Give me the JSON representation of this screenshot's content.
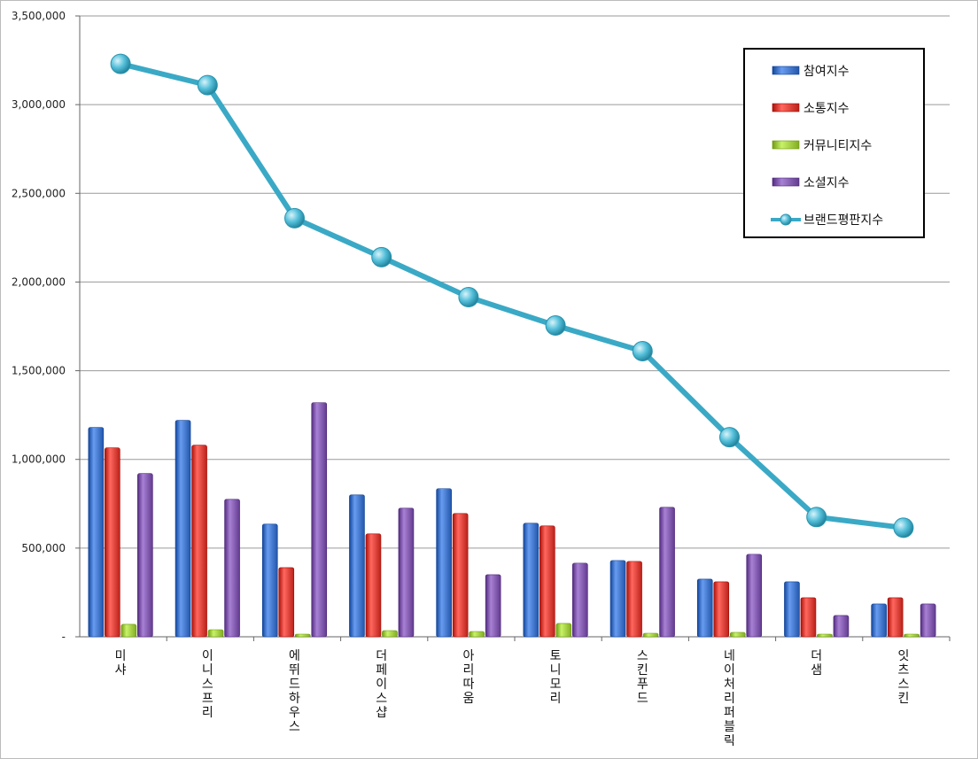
{
  "chart_data": {
    "type": "bar",
    "categories": [
      "미샤",
      "이니스프리",
      "에뛰드하우스",
      "더페이스샵",
      "아리따움",
      "토니모리",
      "스킨푸드",
      "네이처리퍼블릭",
      "더샘",
      "잇츠스킨"
    ],
    "series": [
      {
        "name": "참여지수",
        "type": "bar",
        "color": "#3B6FC4",
        "values": [
          1180000,
          1220000,
          635000,
          800000,
          835000,
          640000,
          430000,
          325000,
          310000,
          185000
        ]
      },
      {
        "name": "소통지수",
        "type": "bar",
        "color": "#D33A32",
        "values": [
          1065000,
          1080000,
          390000,
          580000,
          695000,
          625000,
          425000,
          310000,
          220000,
          220000
        ]
      },
      {
        "name": "커뮤니티지수",
        "type": "bar",
        "color": "#9BC53A",
        "values": [
          70000,
          40000,
          15000,
          35000,
          30000,
          75000,
          20000,
          25000,
          15000,
          15000
        ]
      },
      {
        "name": "소셜지수",
        "type": "bar",
        "color": "#7B54A8",
        "values": [
          920000,
          775000,
          1320000,
          725000,
          350000,
          415000,
          730000,
          465000,
          120000,
          185000
        ]
      },
      {
        "name": "브랜드평판지수",
        "type": "line",
        "color": "#3AA9C6",
        "values": [
          3230000,
          3110000,
          2360000,
          2140000,
          1915000,
          1755000,
          1610000,
          1125000,
          675000,
          615000
        ]
      }
    ],
    "y_ticks": [
      "-",
      "500,000",
      "1,000,000",
      "1,500,000",
      "2,000,000",
      "2,500,000",
      "3,000,000",
      "3,500,000"
    ],
    "y_tick_values": [
      0,
      500000,
      1000000,
      1500000,
      2000000,
      2500000,
      3000000,
      3500000
    ],
    "ylim": [
      0,
      3500000
    ],
    "grid": true,
    "legend_position": "top-right"
  }
}
